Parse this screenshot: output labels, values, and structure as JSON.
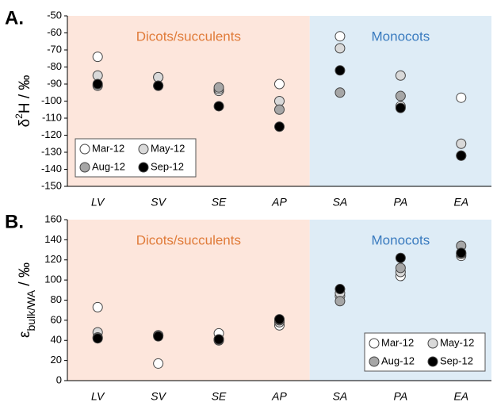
{
  "chart_data": [
    {
      "type": "scatter",
      "panel_label": "A.",
      "ylabel": {
        "symbol": "δ",
        "sup": "2",
        "rest": "H / ‰"
      },
      "categories": [
        "LV",
        "SV",
        "SE",
        "AP",
        "SA",
        "PA",
        "EA"
      ],
      "regions": [
        {
          "label": "Dicots/succulents",
          "color": "#fde6dc",
          "text_color": "#e07b39",
          "categories": [
            "LV",
            "SV",
            "SE",
            "AP"
          ]
        },
        {
          "label": "Monocots",
          "color": "#deecf6",
          "text_color": "#3a7bbf",
          "categories": [
            "SA",
            "PA",
            "EA"
          ]
        }
      ],
      "series": [
        {
          "name": "Mar-12",
          "color": "#ffffff",
          "values": [
            -74,
            -86,
            -94,
            -90,
            -62,
            -103,
            -98
          ]
        },
        {
          "name": "May-12",
          "color": "#d9d9d9",
          "values": [
            -85,
            -86,
            -93,
            -100,
            -69,
            -85,
            -125
          ]
        },
        {
          "name": "Aug-12",
          "color": "#a6a6a6",
          "values": [
            -91,
            -91,
            -92,
            -105,
            -95,
            -97,
            -132
          ]
        },
        {
          "name": "Sep-12",
          "color": "#000000",
          "values": [
            -90,
            -91,
            -103,
            -115,
            -82,
            -104,
            -132
          ]
        }
      ],
      "ylim": [
        -150,
        -50
      ],
      "yticks": [
        -150,
        -140,
        -130,
        -120,
        -110,
        -100,
        -90,
        -80,
        -70,
        -60,
        -50
      ],
      "legend": "lower left"
    },
    {
      "type": "scatter",
      "panel_label": "B.",
      "ylabel": {
        "symbol": "ε",
        "sub": "bulk/WA",
        "rest": " / ‰"
      },
      "categories": [
        "LV",
        "SV",
        "SE",
        "AP",
        "SA",
        "PA",
        "EA"
      ],
      "regions": [
        {
          "label": "Dicots/succulents",
          "color": "#fde6dc",
          "text_color": "#e07b39",
          "categories": [
            "LV",
            "SV",
            "SE",
            "AP"
          ]
        },
        {
          "label": "Monocots",
          "color": "#deecf6",
          "text_color": "#3a7bbf",
          "categories": [
            "SA",
            "PA",
            "EA"
          ]
        }
      ],
      "series": [
        {
          "name": "Mar-12",
          "color": "#ffffff",
          "values": [
            73,
            17,
            47,
            55,
            84,
            104,
            124
          ]
        },
        {
          "name": "May-12",
          "color": "#d9d9d9",
          "values": [
            48,
            45,
            41,
            58,
            87,
            108,
            126
          ]
        },
        {
          "name": "Aug-12",
          "color": "#a6a6a6",
          "values": [
            43,
            45,
            40,
            60,
            79,
            112,
            134
          ]
        },
        {
          "name": "Sep-12",
          "color": "#000000",
          "values": [
            42,
            44,
            41,
            61,
            91,
            122,
            127
          ]
        }
      ],
      "ylim": [
        0,
        160
      ],
      "yticks": [
        0,
        20,
        40,
        60,
        80,
        100,
        120,
        140,
        160
      ],
      "legend": "lower right"
    }
  ]
}
